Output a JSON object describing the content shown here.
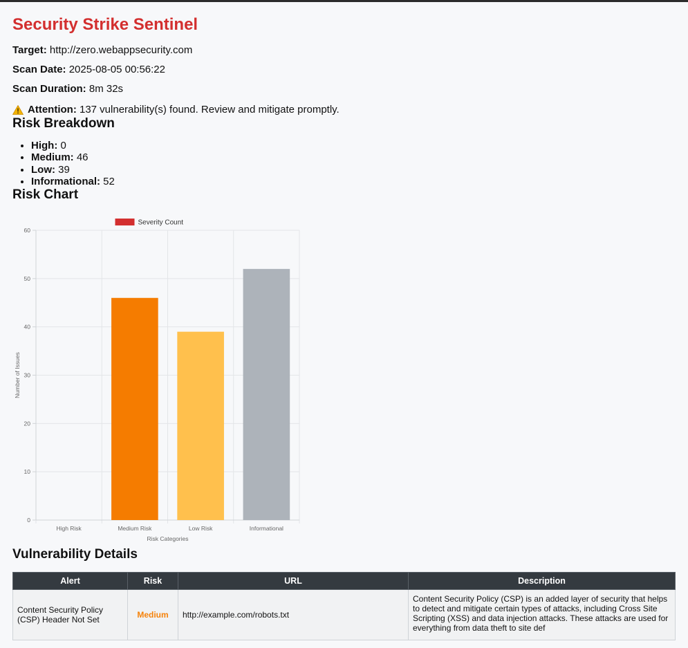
{
  "header": {
    "title": "Security Strike Sentinel"
  },
  "meta": {
    "target_label": "Target:",
    "target_value": "http://zero.webappsecurity.com",
    "date_label": "Scan Date:",
    "date_value": "2025-08-05 00:56:22",
    "duration_label": "Scan Duration:",
    "duration_value": "8m 32s"
  },
  "attention": {
    "icon": "warning-icon",
    "label": "Attention:",
    "text": "137 vulnerability(s) found. Review and mitigate promptly."
  },
  "breakdown": {
    "heading": "Risk Breakdown",
    "items": [
      {
        "label": "High:",
        "value": "0"
      },
      {
        "label": "Medium:",
        "value": "46"
      },
      {
        "label": "Low:",
        "value": "39"
      },
      {
        "label": "Informational:",
        "value": "52"
      }
    ]
  },
  "chart_section": {
    "heading": "Risk Chart"
  },
  "chart_data": {
    "type": "bar",
    "categories": [
      "High Risk",
      "Medium Risk",
      "Low Risk",
      "Informational"
    ],
    "series": [
      {
        "name": "Severity Count",
        "values": [
          0,
          46,
          39,
          52
        ]
      }
    ],
    "bar_colors": [
      "#d32f2f",
      "#f57c00",
      "#ffc04d",
      "#adb3ba"
    ],
    "legend_color": "#d32f2f",
    "xlabel": "Risk Categories",
    "ylabel": "Number of Issues",
    "ylim": [
      0,
      60
    ],
    "yticks": [
      0,
      10,
      20,
      30,
      40,
      50,
      60
    ],
    "grid": true,
    "legend_position": "top"
  },
  "vuln_section": {
    "heading": "Vulnerability Details",
    "columns": [
      "Alert",
      "Risk",
      "URL",
      "Description"
    ],
    "rows": [
      {
        "alert": "Content Security Policy (CSP) Header Not Set",
        "risk": "Medium",
        "url": "http://example.com/robots.txt",
        "description": "Content Security Policy (CSP) is an added layer of security that helps to detect and mitigate certain types of attacks, including Cross Site Scripting (XSS) and data injection attacks. These attacks are used for everything from data theft to site def"
      }
    ]
  }
}
